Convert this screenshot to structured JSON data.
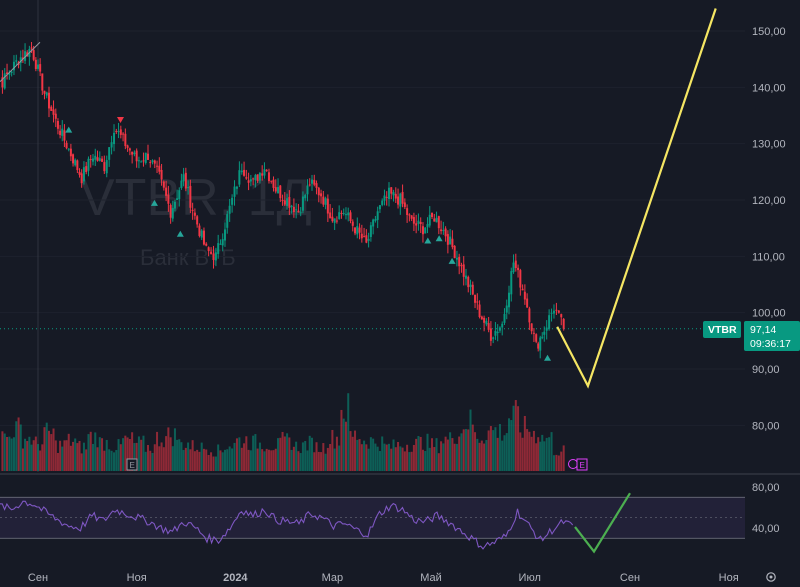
{
  "chart_data": [
    {
      "type": "candlestick",
      "ticker": "VTBR",
      "watermark": {
        "symbol": "VTBR",
        "suffix": "1Д",
        "name": "Банк ВТБ"
      },
      "price_axis": {
        "ticks": [
          "150,00",
          "140,00",
          "130,00",
          "120,00",
          "110,00",
          "100,00",
          "90,00",
          "80,00"
        ],
        "ylim": [
          74,
          155
        ]
      },
      "time_axis": {
        "ticks": [
          "Сен",
          "Ноя",
          "2024",
          "Мар",
          "Май",
          "Июл",
          "Сен",
          "Ноя"
        ]
      },
      "last_price": {
        "label": "VTBR",
        "value": "97,14",
        "countdown": "09:36:17",
        "color": "#089981"
      },
      "price_path": [
        [
          "2023-08-01",
          145
        ],
        [
          "2023-08-10",
          141
        ],
        [
          "2023-08-20",
          145
        ],
        [
          "2023-08-28",
          147
        ],
        [
          "2023-09-05",
          139
        ],
        [
          "2023-09-12",
          134
        ],
        [
          "2023-09-20",
          129
        ],
        [
          "2023-09-28",
          124
        ],
        [
          "2023-10-05",
          128
        ],
        [
          "2023-10-12",
          126
        ],
        [
          "2023-10-18",
          133
        ],
        [
          "2023-10-25",
          130
        ],
        [
          "2023-11-01",
          127
        ],
        [
          "2023-11-08",
          128
        ],
        [
          "2023-11-15",
          124
        ],
        [
          "2023-11-22",
          118
        ],
        [
          "2023-11-30",
          124
        ],
        [
          "2023-12-07",
          117
        ],
        [
          "2023-12-14",
          111
        ],
        [
          "2023-12-20",
          110
        ],
        [
          "2023-12-27",
          117
        ],
        [
          "2024-01-05",
          126
        ],
        [
          "2024-01-12",
          123
        ],
        [
          "2024-01-19",
          126
        ],
        [
          "2024-01-26",
          122
        ],
        [
          "2024-02-02",
          120
        ],
        [
          "2024-02-09",
          118
        ],
        [
          "2024-02-16",
          123
        ],
        [
          "2024-02-23",
          121
        ],
        [
          "2024-03-01",
          117
        ],
        [
          "2024-03-08",
          118
        ],
        [
          "2024-03-15",
          115
        ],
        [
          "2024-03-22",
          112
        ],
        [
          "2024-03-29",
          118
        ],
        [
          "2024-04-05",
          121
        ],
        [
          "2024-04-12",
          120
        ],
        [
          "2024-04-19",
          116
        ],
        [
          "2024-04-26",
          115
        ],
        [
          "2024-05-03",
          117
        ],
        [
          "2024-05-10",
          114
        ],
        [
          "2024-05-17",
          110
        ],
        [
          "2024-05-24",
          105
        ],
        [
          "2024-05-31",
          100
        ],
        [
          "2024-06-07",
          96
        ],
        [
          "2024-06-14",
          98
        ],
        [
          "2024-06-21",
          109
        ],
        [
          "2024-06-28",
          103
        ],
        [
          "2024-07-05",
          94
        ],
        [
          "2024-07-10",
          97
        ],
        [
          "2024-07-16",
          101
        ],
        [
          "2024-07-22",
          97.14
        ]
      ],
      "volume_level": [
        0.55,
        0.5,
        0.62,
        0.48,
        0.4,
        0.55,
        0.38,
        0.44,
        0.35,
        0.5,
        0.42,
        0.36,
        0.45,
        0.4,
        0.35,
        0.48,
        0.52,
        0.4,
        0.36,
        0.34,
        0.3,
        0.38,
        0.45,
        0.42,
        0.4,
        0.38,
        0.44,
        0.36,
        0.4,
        0.35,
        0.48,
        0.9,
        0.52,
        0.45,
        0.42,
        0.36,
        0.38,
        0.4,
        0.42,
        0.38,
        0.46,
        0.55,
        0.72,
        0.5,
        0.6,
        0.58,
        0.8,
        0.62,
        0.55,
        0.48,
        0.3
      ],
      "projection": [
        [
          "2024-07-18",
          97.5
        ],
        [
          "2024-08-06",
          87
        ],
        [
          "2024-10-24",
          154
        ]
      ],
      "signals": {
        "up": [
          [
            "2023-09-20",
            132.5
          ],
          [
            "2023-11-12",
            119.5
          ],
          [
            "2023-11-28",
            114
          ],
          [
            "2024-04-29",
            112.8
          ],
          [
            "2024-05-06",
            113.2
          ],
          [
            "2024-05-14",
            109.2
          ],
          [
            "2024-07-12",
            92
          ]
        ],
        "down": [
          [
            "2023-10-22",
            134.2
          ]
        ]
      },
      "line_colors": {
        "up": "#089981",
        "down": "#f23645",
        "projection": "#f5e663",
        "rsi": "#7e57c2",
        "rsi_projection": "#4caf50"
      }
    },
    {
      "type": "line",
      "indicator": "RSI",
      "axis_ticks": [
        "80,00",
        "40,00"
      ],
      "ylim": [
        10,
        95
      ],
      "bands": [
        70,
        30
      ],
      "values": [
        62,
        58,
        66,
        63,
        55,
        48,
        42,
        40,
        52,
        47,
        58,
        54,
        50,
        46,
        40,
        36,
        46,
        40,
        30,
        28,
        40,
        58,
        52,
        58,
        48,
        46,
        44,
        54,
        50,
        42,
        44,
        38,
        34,
        54,
        62,
        58,
        48,
        46,
        52,
        46,
        38,
        30,
        22,
        26,
        32,
        56,
        42,
        28,
        38,
        46,
        40
      ],
      "projection": [
        [
          0,
          41
        ],
        [
          1,
          17
        ],
        [
          2,
          74
        ]
      ]
    }
  ],
  "icons": {
    "flag_left": "E",
    "flag_right": "E",
    "settings": "gear-icon"
  }
}
